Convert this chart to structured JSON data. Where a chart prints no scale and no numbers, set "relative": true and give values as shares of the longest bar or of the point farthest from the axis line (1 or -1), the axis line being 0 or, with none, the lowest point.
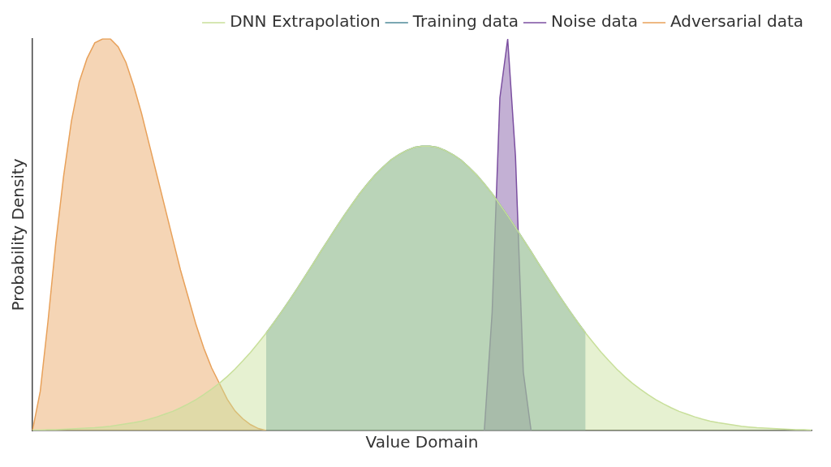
{
  "chart_data": {
    "type": "area",
    "relative": true,
    "xlabel": "Value Domain",
    "ylabel": "Probability Density",
    "legend": "top right",
    "grid": false,
    "categories": [
      null,
      null,
      null,
      null,
      null,
      null,
      null,
      null,
      null,
      null,
      null,
      null,
      null,
      null,
      null,
      null,
      null,
      null,
      null,
      null,
      null,
      null,
      null,
      null,
      null,
      null,
      null,
      null,
      null,
      null,
      null,
      null,
      null,
      null,
      null,
      null,
      null,
      null,
      null,
      null,
      null,
      null,
      null,
      null,
      null,
      null,
      null,
      null,
      null,
      null,
      null,
      null,
      null,
      null,
      null,
      null,
      null,
      null,
      null,
      null,
      null,
      null,
      null,
      null,
      null,
      null,
      null,
      null,
      null,
      null,
      null,
      null,
      null,
      null,
      null,
      null,
      null,
      null,
      null,
      null,
      null,
      null,
      null,
      null,
      null,
      null,
      null,
      null,
      null,
      null,
      null,
      null,
      null,
      null,
      null,
      null,
      null,
      null,
      null,
      null,
      null
    ],
    "series": [
      {
        "name": "DNN Extrapolation",
        "color": "#c8df9a",
        "values": [
          0.001,
          0.001,
          0.002,
          0.002,
          0.003,
          0.004,
          0.005,
          0.006,
          0.007,
          0.009,
          0.011,
          0.014,
          0.017,
          0.02,
          0.024,
          0.029,
          0.035,
          0.042,
          0.049,
          0.058,
          0.068,
          0.079,
          0.092,
          0.106,
          0.121,
          0.138,
          0.157,
          0.178,
          0.2,
          0.224,
          0.249,
          0.276,
          0.304,
          0.333,
          0.363,
          0.394,
          0.425,
          0.457,
          0.488,
          0.519,
          0.549,
          0.577,
          0.605,
          0.63,
          0.653,
          0.673,
          0.691,
          0.704,
          0.715,
          0.723,
          0.726,
          0.726,
          0.723,
          0.715,
          0.704,
          0.691,
          0.673,
          0.653,
          0.63,
          0.605,
          0.577,
          0.549,
          0.519,
          0.488,
          0.457,
          0.425,
          0.394,
          0.363,
          0.333,
          0.304,
          0.276,
          0.249,
          0.224,
          0.2,
          0.178,
          0.157,
          0.138,
          0.121,
          0.106,
          0.092,
          0.079,
          0.068,
          0.058,
          0.049,
          0.042,
          0.035,
          0.029,
          0.024,
          0.02,
          0.017,
          0.014,
          0.011,
          0.009,
          0.007,
          0.006,
          0.005,
          0.004,
          0.003,
          0.002,
          0.002,
          0.001
        ]
      },
      {
        "name": "Training data",
        "color": "#4f8a9a",
        "values": [
          null,
          null,
          null,
          null,
          null,
          null,
          null,
          null,
          null,
          null,
          null,
          null,
          null,
          null,
          null,
          null,
          null,
          null,
          null,
          null,
          null,
          null,
          null,
          null,
          null,
          null,
          null,
          null,
          null,
          null,
          0.249,
          0.276,
          0.304,
          0.333,
          0.363,
          0.394,
          0.425,
          0.457,
          0.488,
          0.519,
          0.549,
          0.577,
          0.605,
          0.63,
          0.653,
          0.673,
          0.691,
          0.704,
          0.715,
          0.723,
          0.726,
          0.726,
          0.723,
          0.715,
          0.704,
          0.691,
          0.673,
          0.653,
          0.63,
          0.605,
          0.577,
          0.549,
          0.519,
          0.488,
          0.457,
          0.425,
          0.394,
          0.363,
          0.333,
          0.304,
          0.276,
          0.249,
          null,
          null,
          null,
          null,
          null,
          null,
          null,
          null,
          null,
          null,
          null,
          null,
          null,
          null,
          null,
          null,
          null,
          null,
          null,
          null,
          null,
          null,
          null,
          null,
          null,
          null,
          null,
          null,
          null
        ]
      },
      {
        "name": "Noise data",
        "color": "#7b4fa0",
        "values": [
          null,
          null,
          null,
          null,
          null,
          null,
          null,
          null,
          null,
          null,
          null,
          null,
          null,
          null,
          null,
          null,
          null,
          null,
          null,
          null,
          null,
          null,
          null,
          null,
          null,
          null,
          null,
          null,
          null,
          null,
          null,
          null,
          null,
          null,
          null,
          null,
          null,
          null,
          null,
          null,
          null,
          null,
          null,
          null,
          null,
          null,
          null,
          null,
          null,
          null,
          null,
          null,
          null,
          null,
          null,
          null,
          null,
          null,
          0,
          0.3,
          0.85,
          1,
          0.7,
          0.15,
          0,
          null,
          null,
          null,
          null,
          null,
          null,
          null,
          null,
          null,
          null,
          null,
          null,
          null,
          null,
          null,
          null,
          null,
          null,
          null,
          null,
          null,
          null,
          null,
          null,
          null,
          null,
          null,
          null,
          null,
          null,
          null,
          null,
          null,
          null,
          null,
          null
        ]
      },
      {
        "name": "Adversarial data",
        "color": "#e8a15a",
        "values": [
          0,
          0.1,
          0.28,
          0.48,
          0.65,
          0.79,
          0.89,
          0.95,
          0.99,
          1,
          1,
          0.98,
          0.94,
          0.88,
          0.81,
          0.73,
          0.65,
          0.57,
          0.49,
          0.41,
          0.34,
          0.27,
          0.21,
          0.16,
          0.12,
          0.08,
          0.05,
          0.03,
          0.015,
          0.005,
          0,
          null,
          null,
          null,
          null,
          null,
          null,
          null,
          null,
          null,
          null,
          null,
          null,
          null,
          null,
          null,
          null,
          null,
          null,
          null,
          null,
          null,
          null,
          null,
          null,
          null,
          null,
          null,
          null,
          null,
          null,
          null,
          null,
          null,
          null,
          null,
          null,
          null,
          null,
          null,
          null,
          null,
          null,
          null,
          null,
          null,
          null,
          null,
          null,
          null,
          null,
          null,
          null,
          null,
          null,
          null,
          null,
          null,
          null,
          null,
          null,
          null,
          null,
          null,
          null,
          null,
          null,
          null,
          null,
          null,
          null
        ]
      }
    ]
  }
}
